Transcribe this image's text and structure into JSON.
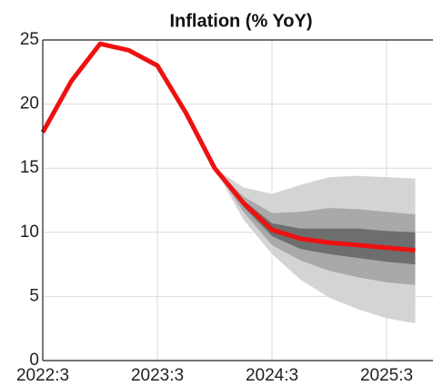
{
  "chart_data": {
    "type": "fan",
    "title": "Inflation (% YoY)",
    "categories": [
      "2022:3",
      null,
      null,
      null,
      "2023:3",
      null,
      null,
      null,
      "2024:3",
      null,
      null,
      null,
      "2025:3",
      null
    ],
    "ylim": [
      0,
      25
    ],
    "yticks": [
      0,
      5,
      10,
      15,
      20,
      25
    ],
    "grid": true,
    "line": {
      "color": "#ee1111",
      "values": [
        17.8,
        21.8,
        24.7,
        24.2,
        23.0,
        19.3,
        15.0,
        12.3,
        10.2,
        9.5,
        9.2,
        9.0,
        8.8,
        8.6
      ]
    },
    "bands": [
      {
        "color": "#d4d4d4",
        "lower": [
          null,
          null,
          null,
          null,
          null,
          null,
          15.0,
          11.0,
          8.3,
          6.3,
          4.9,
          4.0,
          3.3,
          2.9
        ],
        "upper": [
          null,
          null,
          null,
          null,
          null,
          null,
          15.0,
          13.5,
          13.0,
          13.7,
          14.3,
          14.4,
          14.3,
          14.2
        ]
      },
      {
        "color": "#a9a9a9",
        "lower": [
          null,
          null,
          null,
          null,
          null,
          null,
          15.0,
          11.6,
          9.0,
          7.8,
          7.0,
          6.5,
          6.1,
          5.9
        ],
        "upper": [
          null,
          null,
          null,
          null,
          null,
          null,
          15.0,
          12.8,
          11.5,
          11.6,
          11.9,
          11.8,
          11.6,
          11.4
        ]
      },
      {
        "color": "#6e6e6e",
        "lower": [
          null,
          null,
          null,
          null,
          null,
          null,
          15.0,
          12.0,
          9.7,
          8.7,
          8.3,
          8.0,
          7.7,
          7.5
        ],
        "upper": [
          null,
          null,
          null,
          null,
          null,
          null,
          15.0,
          12.5,
          10.7,
          10.3,
          10.3,
          10.3,
          10.1,
          10.0
        ]
      }
    ]
  }
}
